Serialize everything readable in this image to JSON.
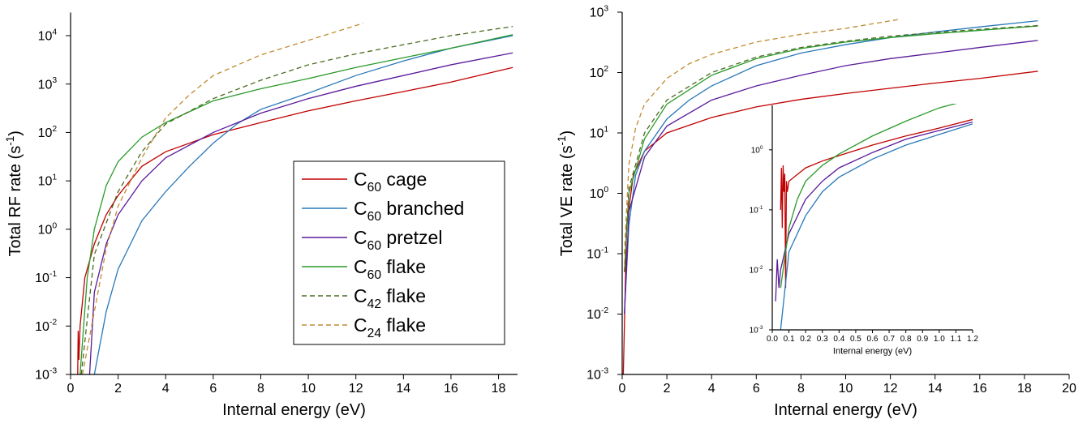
{
  "chart_data": [
    {
      "type": "line",
      "x_label": "Internal energy (eV)",
      "y_label": "Total RF rate (s-1)",
      "log_y": true,
      "legend": "lower right",
      "xlim": [
        0,
        18.8
      ],
      "ylim": [
        0.001,
        30000
      ],
      "xticks": [
        0,
        2,
        4,
        6,
        8,
        10,
        12,
        14,
        16,
        18
      ],
      "yticks": [
        {
          "value": 0.001,
          "label": "10",
          "sup": "-3"
        },
        {
          "value": 0.01,
          "label": "10",
          "sup": "-2"
        },
        {
          "value": 0.1,
          "label": "10",
          "sup": "-1"
        },
        {
          "value": 1,
          "label": "10",
          "sup": "0"
        },
        {
          "value": 10,
          "label": "10",
          "sup": "1"
        },
        {
          "value": 100,
          "label": "10",
          "sup": "2"
        },
        {
          "value": 1000,
          "label": "10",
          "sup": "3"
        },
        {
          "value": 10000,
          "label": "10",
          "sup": "4"
        }
      ],
      "series": [
        {
          "name": "C60 cage",
          "color": "#c00000",
          "dashed": false,
          "x": [
            0.3,
            0.32,
            0.35,
            0.4,
            0.6,
            1,
            1.5,
            2,
            3,
            4,
            6,
            8,
            10,
            12,
            14,
            16,
            18.6
          ],
          "values": [
            0.001,
            0.008,
            0.002,
            0.01,
            0.1,
            0.5,
            2,
            5,
            20,
            40,
            90,
            160,
            280,
            450,
            700,
            1100,
            2200
          ]
        },
        {
          "name": "C60 branched",
          "color": "#2878b8",
          "dashed": false,
          "x": [
            1.0,
            1.5,
            2,
            3,
            4,
            5,
            6,
            7,
            8,
            10,
            12,
            14,
            16,
            18.6
          ],
          "values": [
            0.001,
            0.02,
            0.15,
            1.5,
            6,
            20,
            60,
            150,
            300,
            650,
            1500,
            3000,
            5500,
            10000
          ]
        },
        {
          "name": "C60 pretzel",
          "color": "#5a1a9a",
          "dashed": false,
          "x": [
            0.8,
            1,
            1.5,
            2,
            3,
            4,
            6,
            8,
            10,
            12,
            14,
            16,
            18.6
          ],
          "values": [
            0.001,
            0.05,
            0.5,
            2,
            10,
            30,
            100,
            250,
            500,
            900,
            1500,
            2500,
            4400
          ]
        },
        {
          "name": "C60 flake",
          "color": "#2a9a2a",
          "dashed": false,
          "x": [
            0.4,
            0.7,
            1,
            1.5,
            2,
            3,
            4,
            6,
            8,
            10,
            12,
            14,
            16,
            18.6
          ],
          "values": [
            0.001,
            0.1,
            1,
            8,
            25,
            80,
            160,
            450,
            800,
            1300,
            2200,
            3500,
            5500,
            10500
          ]
        },
        {
          "name": "C42 flake",
          "color": "#4a6a20",
          "dashed": true,
          "x": [
            0.45,
            1,
            2,
            3,
            4,
            6,
            8,
            10,
            12,
            14,
            16,
            18.6
          ],
          "values": [
            0.001,
            0.3,
            6,
            40,
            150,
            500,
            1200,
            2500,
            4200,
            6500,
            10000,
            15500
          ]
        },
        {
          "name": "C24 flake",
          "color": "#c08a30",
          "dashed": true,
          "x": [
            0.5,
            1,
            1.5,
            2,
            3,
            4,
            5,
            6,
            8,
            10,
            12.3
          ],
          "values": [
            0.001,
            0.02,
            0.4,
            3,
            30,
            200,
            600,
            1500,
            4000,
            8000,
            18000
          ]
        }
      ]
    },
    {
      "type": "line",
      "x_label": "Internal energy (eV)",
      "y_label": "Total VE rate (s-1)",
      "log_y": true,
      "xlim": [
        0,
        20
      ],
      "ylim": [
        0.001,
        1000
      ],
      "xticks": [
        0,
        2,
        4,
        6,
        8,
        10,
        12,
        14,
        16,
        18,
        20
      ],
      "yticks": [
        {
          "value": 0.001,
          "label": "10",
          "sup": "-3"
        },
        {
          "value": 0.01,
          "label": "10",
          "sup": "-2"
        },
        {
          "value": 0.1,
          "label": "10",
          "sup": "-1"
        },
        {
          "value": 1,
          "label": "10",
          "sup": "0"
        },
        {
          "value": 10,
          "label": "10",
          "sup": "1"
        },
        {
          "value": 100,
          "label": "10",
          "sup": "2"
        },
        {
          "value": 1000,
          "label": "10",
          "sup": "3"
        }
      ],
      "series": [
        {
          "color": "#c00000",
          "dashed": false,
          "x": [
            0.05,
            0.2,
            0.5,
            1,
            2,
            4,
            6,
            8,
            10,
            12,
            14,
            16,
            18.6
          ],
          "values": [
            0.001,
            0.3,
            2,
            5,
            10,
            18,
            27,
            36,
            45,
            55,
            67,
            80,
            105
          ]
        },
        {
          "color": "#2878b8",
          "dashed": false,
          "x": [
            0.1,
            0.3,
            0.6,
            1,
            2,
            3,
            4,
            6,
            8,
            10,
            12,
            14,
            16,
            18.6
          ],
          "values": [
            0.01,
            0.3,
            2,
            5,
            17,
            35,
            60,
            130,
            210,
            290,
            380,
            470,
            570,
            720
          ]
        },
        {
          "color": "#5a1a9a",
          "dashed": false,
          "x": [
            0.1,
            0.3,
            1,
            2,
            4,
            6,
            8,
            10,
            12,
            14,
            16,
            18.6
          ],
          "values": [
            0.01,
            0.5,
            4,
            13,
            35,
            60,
            90,
            130,
            170,
            210,
            260,
            340
          ]
        },
        {
          "color": "#2a9a2a",
          "dashed": false,
          "x": [
            0.1,
            0.3,
            1,
            2,
            4,
            6,
            8,
            10,
            12,
            14,
            16,
            18.6
          ],
          "values": [
            0.05,
            1,
            8,
            30,
            90,
            170,
            250,
            320,
            380,
            440,
            500,
            590
          ]
        },
        {
          "color": "#4a6a20",
          "dashed": true,
          "x": [
            0.1,
            0.3,
            1,
            2,
            4,
            6,
            8,
            10,
            12,
            14,
            16,
            18.6
          ],
          "values": [
            0.05,
            1.2,
            10,
            35,
            100,
            180,
            260,
            330,
            400,
            460,
            520,
            600
          ]
        },
        {
          "color": "#c08a30",
          "dashed": true,
          "x": [
            0.1,
            0.3,
            0.6,
            1,
            2,
            3,
            4,
            6,
            8,
            10,
            12.4
          ],
          "values": [
            0.1,
            3,
            12,
            30,
            80,
            140,
            200,
            320,
            430,
            540,
            760
          ]
        }
      ]
    },
    {
      "type": "line",
      "x_label": "Internal energy (eV)",
      "log_y": true,
      "xlim": [
        0,
        1.2
      ],
      "ylim": [
        0.001,
        5.5
      ],
      "xticks": [
        {
          "value": 0,
          "label": "0.0"
        },
        {
          "value": 0.1,
          "label": "0.1"
        },
        {
          "value": 0.2,
          "label": "0.2"
        },
        {
          "value": 0.3,
          "label": "0.3"
        },
        {
          "value": 0.4,
          "label": "0.4"
        },
        {
          "value": 0.5,
          "label": "0.5"
        },
        {
          "value": 0.6,
          "label": "0.6"
        },
        {
          "value": 0.7,
          "label": "0.7"
        },
        {
          "value": 0.8,
          "label": "0.8"
        },
        {
          "value": 0.9,
          "label": "0.9"
        },
        {
          "value": 1,
          "label": "1.0"
        },
        {
          "value": 1.1,
          "label": "1.1"
        },
        {
          "value": 1.2,
          "label": "1.2"
        }
      ],
      "yticks": [
        {
          "value": 0.001,
          "label": "10",
          "sup": "-3"
        },
        {
          "value": 0.01,
          "label": "10",
          "sup": "-2"
        },
        {
          "value": 0.1,
          "label": "10",
          "sup": "-1"
        },
        {
          "value": 1,
          "label": "10",
          "sup": "0"
        }
      ],
      "series": [
        {
          "color": "#c00000",
          "dashed": false,
          "x": [
            0.05,
            0.055,
            0.06,
            0.065,
            0.07,
            0.075,
            0.08,
            0.085,
            0.09,
            0.1,
            0.2,
            0.3,
            0.4,
            0.6,
            0.8,
            1.0,
            1.2
          ],
          "values": [
            0.1,
            0.5,
            0.05,
            0.55,
            0.2,
            0.4,
            0.005,
            0.3,
            0.2,
            0.3,
            0.5,
            0.65,
            0.8,
            1.2,
            1.7,
            2.3,
            3.2
          ]
        },
        {
          "color": "#2878b8",
          "dashed": false,
          "x": [
            0.05,
            0.1,
            0.2,
            0.3,
            0.4,
            0.6,
            0.8,
            1.0,
            1.2
          ],
          "values": [
            0.001,
            0.02,
            0.08,
            0.2,
            0.35,
            0.7,
            1.2,
            1.8,
            2.7
          ]
        },
        {
          "color": "#5a1a9a",
          "dashed": false,
          "x": [
            0.02,
            0.03,
            0.04,
            0.05,
            0.1,
            0.2,
            0.3,
            0.4,
            0.6,
            0.8,
            1.0,
            1.2
          ],
          "values": [
            0.003,
            0.015,
            0.005,
            0.01,
            0.04,
            0.15,
            0.3,
            0.5,
            0.9,
            1.5,
            2.1,
            2.9
          ]
        },
        {
          "color": "#2a9a2a",
          "dashed": false,
          "x": [
            0.05,
            0.1,
            0.15,
            0.2,
            0.3,
            0.4,
            0.6,
            0.8,
            1.0,
            1.2
          ],
          "values": [
            0.005,
            0.05,
            0.15,
            0.3,
            0.55,
            0.85,
            1.7,
            3,
            5,
            7
          ]
        }
      ]
    }
  ]
}
